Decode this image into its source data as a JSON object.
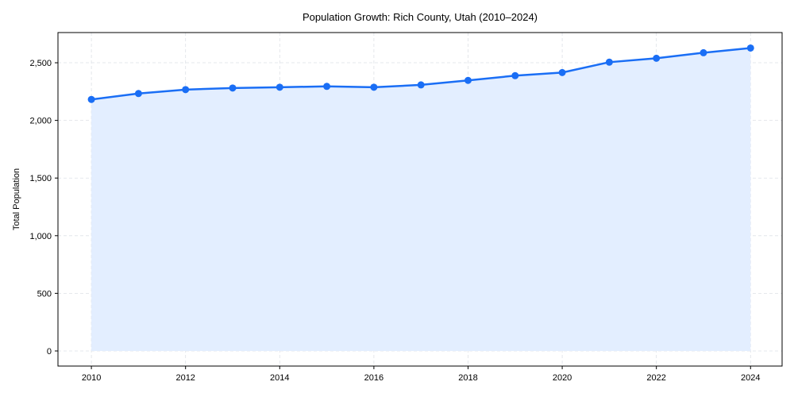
{
  "chart_data": {
    "type": "line",
    "title": "Population Growth: Rich County, Utah (2010–2024)",
    "xlabel": "",
    "ylabel": "Total Population",
    "x": [
      2010,
      2011,
      2012,
      2013,
      2014,
      2015,
      2016,
      2017,
      2018,
      2019,
      2020,
      2021,
      2022,
      2023,
      2024
    ],
    "series": [
      {
        "name": "Total Population",
        "values": [
          2182,
          2233,
          2267,
          2281,
          2288,
          2295,
          2288,
          2308,
          2347,
          2388,
          2415,
          2505,
          2539,
          2587,
          2628
        ],
        "color": "#1a6ef5",
        "fill": "#e3eeff"
      }
    ],
    "xlim": [
      2009.29,
      2024.67
    ],
    "ylim": [
      -131,
      2762
    ],
    "xticks": [
      2010,
      2012,
      2014,
      2016,
      2018,
      2020,
      2022,
      2024
    ],
    "xtick_labels": [
      "2010",
      "2012",
      "2014",
      "2016",
      "2018",
      "2020",
      "2022",
      "2024"
    ],
    "yticks": [
      0,
      500,
      1000,
      1500,
      2000,
      2500
    ],
    "ytick_labels": [
      "0",
      "500",
      "1,000",
      "1,500",
      "2,000",
      "2,500"
    ],
    "grid": true
  }
}
